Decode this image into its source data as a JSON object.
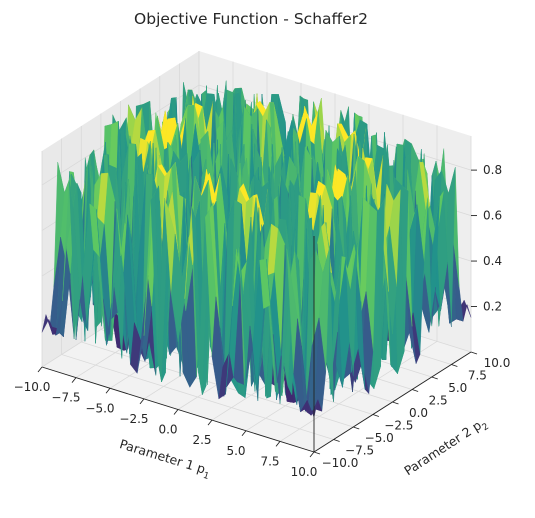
{
  "chart_data": {
    "type": "surface3d",
    "title": "Objective Function - Schaffer2",
    "function": "Schaffer2",
    "xlabel": "Parameter 1 p",
    "xlabel_sub": "1",
    "ylabel": "Parameter 2 p",
    "ylabel_sub": "2",
    "zlabel": "",
    "xlim": [
      -10.0,
      10.0
    ],
    "ylim": [
      -10.0,
      10.0
    ],
    "zlim": [
      0.0,
      0.95
    ],
    "x_ticks": [
      -10.0,
      -7.5,
      -5.0,
      -2.5,
      0.0,
      2.5,
      5.0,
      7.5,
      10.0
    ],
    "x_tick_labels": [
      "−10.0",
      "−7.5",
      "−5.0",
      "−2.5",
      "0.0",
      "2.5",
      "5.0",
      "7.5",
      "10.0"
    ],
    "y_ticks": [
      -10.0,
      -7.5,
      -5.0,
      -2.5,
      0.0,
      2.5,
      5.0,
      7.5,
      10.0
    ],
    "y_tick_labels": [
      "−10.0",
      "−7.5",
      "−5.0",
      "−2.5",
      "0.0",
      "2.5",
      "5.0",
      "7.5",
      "10.0"
    ],
    "z_ticks": [
      0.2,
      0.4,
      0.6,
      0.8
    ],
    "z_tick_labels": [
      "0.2",
      "0.4",
      "0.6",
      "0.8"
    ],
    "colormap": "viridis",
    "grid": true,
    "pane_color": "#f2f2f2",
    "grid_color": "#d9d9d9"
  }
}
